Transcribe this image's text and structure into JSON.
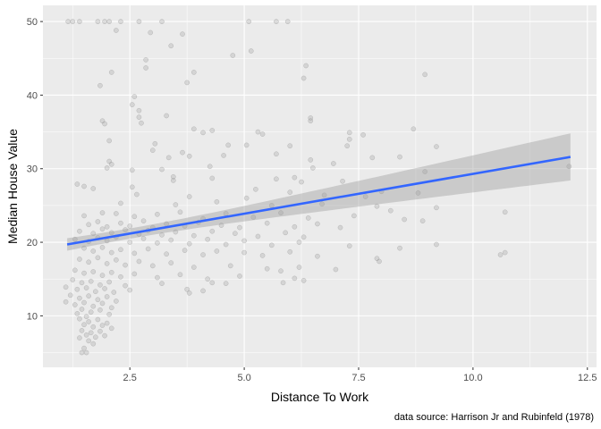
{
  "chart_data": {
    "type": "scatter",
    "title": "",
    "xlabel": "Distance To Work",
    "ylabel": "Median House Value",
    "caption": "data source: Harrison Jr and Rubinfeld (1978)",
    "xlim": [
      0.6,
      12.7
    ],
    "ylim": [
      3.0,
      52.2
    ],
    "x_ticks": [
      2.5,
      5.0,
      7.5,
      10.0,
      12.5
    ],
    "x_tick_labels": [
      "2.5",
      "5.0",
      "7.5",
      "10.0",
      "12.5"
    ],
    "y_ticks": [
      10,
      20,
      30,
      40,
      50
    ],
    "y_tick_labels": [
      "10",
      "20",
      "30",
      "40",
      "50"
    ],
    "grid": true,
    "legend": "none",
    "colors": {
      "panel": "#ebebeb",
      "grid": "#ffffff",
      "points": "#999999",
      "trend": "#3366ff",
      "ribbon": "#999999"
    },
    "trend": {
      "method": "linear",
      "x": [
        1.13,
        12.13
      ],
      "y": [
        19.7,
        31.6
      ],
      "ci_halfwidth": [
        0.7,
        3.2
      ]
    },
    "points": [
      {
        "x": 1.15,
        "y": 50
      },
      {
        "x": 1.25,
        "y": 50
      },
      {
        "x": 1.4,
        "y": 50
      },
      {
        "x": 1.8,
        "y": 50
      },
      {
        "x": 1.95,
        "y": 50
      },
      {
        "x": 2.05,
        "y": 50
      },
      {
        "x": 2.3,
        "y": 50
      },
      {
        "x": 2.7,
        "y": 50
      },
      {
        "x": 3.2,
        "y": 50
      },
      {
        "x": 5.1,
        "y": 50
      },
      {
        "x": 5.7,
        "y": 50
      },
      {
        "x": 5.95,
        "y": 50
      },
      {
        "x": 2.2,
        "y": 48.8
      },
      {
        "x": 2.95,
        "y": 48.5
      },
      {
        "x": 3.65,
        "y": 48.3
      },
      {
        "x": 5.15,
        "y": 46.0
      },
      {
        "x": 3.4,
        "y": 46.7
      },
      {
        "x": 4.75,
        "y": 45.4
      },
      {
        "x": 2.85,
        "y": 44.8
      },
      {
        "x": 6.35,
        "y": 44.0
      },
      {
        "x": 2.85,
        "y": 43.7
      },
      {
        "x": 3.9,
        "y": 43.1
      },
      {
        "x": 2.1,
        "y": 43.1
      },
      {
        "x": 6.3,
        "y": 42.3
      },
      {
        "x": 8.95,
        "y": 42.8
      },
      {
        "x": 1.85,
        "y": 41.3
      },
      {
        "x": 3.75,
        "y": 41.7
      },
      {
        "x": 2.6,
        "y": 39.8
      },
      {
        "x": 2.55,
        "y": 38.7
      },
      {
        "x": 2.7,
        "y": 37.9
      },
      {
        "x": 3.3,
        "y": 37.2
      },
      {
        "x": 2.7,
        "y": 37.0
      },
      {
        "x": 1.9,
        "y": 36.5
      },
      {
        "x": 6.45,
        "y": 36.9
      },
      {
        "x": 6.45,
        "y": 36.5
      },
      {
        "x": 1.95,
        "y": 36.1
      },
      {
        "x": 2.75,
        "y": 36.2
      },
      {
        "x": 3.9,
        "y": 35.4
      },
      {
        "x": 4.3,
        "y": 35.2
      },
      {
        "x": 5.3,
        "y": 35.0
      },
      {
        "x": 7.3,
        "y": 34.9
      },
      {
        "x": 7.6,
        "y": 34.6
      },
      {
        "x": 8.7,
        "y": 35.4
      },
      {
        "x": 7.3,
        "y": 34.0
      },
      {
        "x": 4.1,
        "y": 34.9
      },
      {
        "x": 5.4,
        "y": 34.7
      },
      {
        "x": 2.05,
        "y": 33.8
      },
      {
        "x": 3.05,
        "y": 33.4
      },
      {
        "x": 4.65,
        "y": 33.2
      },
      {
        "x": 5.05,
        "y": 33.2
      },
      {
        "x": 6.0,
        "y": 33.1
      },
      {
        "x": 7.25,
        "y": 33.1
      },
      {
        "x": 9.2,
        "y": 33.0
      },
      {
        "x": 3.65,
        "y": 32.2
      },
      {
        "x": 3.0,
        "y": 32.5
      },
      {
        "x": 4.55,
        "y": 31.8
      },
      {
        "x": 5.7,
        "y": 32.0
      },
      {
        "x": 3.35,
        "y": 31.5
      },
      {
        "x": 3.8,
        "y": 31.7
      },
      {
        "x": 6.45,
        "y": 31.2
      },
      {
        "x": 7.8,
        "y": 31.5
      },
      {
        "x": 8.4,
        "y": 31.6
      },
      {
        "x": 2.05,
        "y": 31.0
      },
      {
        "x": 2.1,
        "y": 30.6
      },
      {
        "x": 2.0,
        "y": 30.1
      },
      {
        "x": 2.55,
        "y": 29.8
      },
      {
        "x": 3.2,
        "y": 29.9
      },
      {
        "x": 4.25,
        "y": 30.3
      },
      {
        "x": 6.5,
        "y": 30.1
      },
      {
        "x": 6.95,
        "y": 30.7
      },
      {
        "x": 8.95,
        "y": 29.6
      },
      {
        "x": 12.1,
        "y": 30.3
      },
      {
        "x": 3.45,
        "y": 28.9
      },
      {
        "x": 3.45,
        "y": 28.4
      },
      {
        "x": 4.3,
        "y": 28.7
      },
      {
        "x": 5.7,
        "y": 28.6
      },
      {
        "x": 6.1,
        "y": 28.8
      },
      {
        "x": 6.25,
        "y": 28.2
      },
      {
        "x": 7.15,
        "y": 28.3
      },
      {
        "x": 2.55,
        "y": 27.5
      },
      {
        "x": 1.35,
        "y": 27.9
      },
      {
        "x": 1.5,
        "y": 27.6
      },
      {
        "x": 1.7,
        "y": 27.3
      },
      {
        "x": 5.25,
        "y": 27.2
      },
      {
        "x": 6.0,
        "y": 26.8
      },
      {
        "x": 8.0,
        "y": 26.9
      },
      {
        "x": 8.8,
        "y": 26.7
      },
      {
        "x": 2.65,
        "y": 26.5
      },
      {
        "x": 3.8,
        "y": 26.2
      },
      {
        "x": 5.05,
        "y": 26.0
      },
      {
        "x": 6.75,
        "y": 26.4
      },
      {
        "x": 7.65,
        "y": 26.2
      },
      {
        "x": 2.3,
        "y": 25.3
      },
      {
        "x": 3.5,
        "y": 25.1
      },
      {
        "x": 4.4,
        "y": 25.5
      },
      {
        "x": 5.6,
        "y": 25.0
      },
      {
        "x": 6.7,
        "y": 25.2
      },
      {
        "x": 7.9,
        "y": 24.9
      },
      {
        "x": 9.2,
        "y": 24.7
      },
      {
        "x": 10.7,
        "y": 24.1
      },
      {
        "x": 8.2,
        "y": 24.3
      },
      {
        "x": 1.5,
        "y": 23.6
      },
      {
        "x": 1.9,
        "y": 24.0
      },
      {
        "x": 2.2,
        "y": 23.9
      },
      {
        "x": 2.6,
        "y": 23.5
      },
      {
        "x": 3.1,
        "y": 23.8
      },
      {
        "x": 3.6,
        "y": 24.1
      },
      {
        "x": 4.1,
        "y": 23.2
      },
      {
        "x": 4.6,
        "y": 23.9
      },
      {
        "x": 5.2,
        "y": 23.4
      },
      {
        "x": 5.8,
        "y": 24.0
      },
      {
        "x": 6.4,
        "y": 23.3
      },
      {
        "x": 7.4,
        "y": 23.6
      },
      {
        "x": 8.5,
        "y": 23.1
      },
      {
        "x": 8.9,
        "y": 22.9
      },
      {
        "x": 1.6,
        "y": 22.4
      },
      {
        "x": 1.8,
        "y": 22.8
      },
      {
        "x": 2.0,
        "y": 22.1
      },
      {
        "x": 2.3,
        "y": 22.6
      },
      {
        "x": 2.5,
        "y": 22.2
      },
      {
        "x": 2.8,
        "y": 22.9
      },
      {
        "x": 3.0,
        "y": 22.0
      },
      {
        "x": 3.3,
        "y": 22.5
      },
      {
        "x": 3.7,
        "y": 22.2
      },
      {
        "x": 4.0,
        "y": 22.7
      },
      {
        "x": 4.5,
        "y": 22.3
      },
      {
        "x": 4.9,
        "y": 22.0
      },
      {
        "x": 5.5,
        "y": 22.6
      },
      {
        "x": 6.1,
        "y": 22.1
      },
      {
        "x": 6.6,
        "y": 22.5
      },
      {
        "x": 7.1,
        "y": 22.0
      },
      {
        "x": 1.4,
        "y": 21.5
      },
      {
        "x": 1.7,
        "y": 21.2
      },
      {
        "x": 1.9,
        "y": 21.8
      },
      {
        "x": 2.1,
        "y": 21.3
      },
      {
        "x": 2.4,
        "y": 21.7
      },
      {
        "x": 2.7,
        "y": 21.1
      },
      {
        "x": 2.9,
        "y": 21.6
      },
      {
        "x": 3.2,
        "y": 21.0
      },
      {
        "x": 3.5,
        "y": 21.4
      },
      {
        "x": 3.9,
        "y": 20.9
      },
      {
        "x": 4.3,
        "y": 21.5
      },
      {
        "x": 4.8,
        "y": 21.2
      },
      {
        "x": 5.3,
        "y": 20.8
      },
      {
        "x": 5.9,
        "y": 21.3
      },
      {
        "x": 6.3,
        "y": 20.7
      },
      {
        "x": 1.3,
        "y": 20.4
      },
      {
        "x": 1.6,
        "y": 20.1
      },
      {
        "x": 1.8,
        "y": 20.6
      },
      {
        "x": 2.0,
        "y": 20.2
      },
      {
        "x": 2.2,
        "y": 20.7
      },
      {
        "x": 2.5,
        "y": 20.0
      },
      {
        "x": 2.8,
        "y": 20.5
      },
      {
        "x": 3.1,
        "y": 19.9
      },
      {
        "x": 3.4,
        "y": 20.3
      },
      {
        "x": 3.8,
        "y": 19.8
      },
      {
        "x": 4.2,
        "y": 20.4
      },
      {
        "x": 4.6,
        "y": 19.7
      },
      {
        "x": 5.0,
        "y": 20.2
      },
      {
        "x": 5.6,
        "y": 19.6
      },
      {
        "x": 6.2,
        "y": 20.0
      },
      {
        "x": 7.3,
        "y": 19.5
      },
      {
        "x": 8.4,
        "y": 19.2
      },
      {
        "x": 9.2,
        "y": 19.7
      },
      {
        "x": 1.5,
        "y": 19.2
      },
      {
        "x": 1.7,
        "y": 18.8
      },
      {
        "x": 1.9,
        "y": 19.3
      },
      {
        "x": 2.1,
        "y": 18.6
      },
      {
        "x": 2.3,
        "y": 19.0
      },
      {
        "x": 2.6,
        "y": 18.5
      },
      {
        "x": 2.9,
        "y": 19.1
      },
      {
        "x": 3.3,
        "y": 18.4
      },
      {
        "x": 3.7,
        "y": 18.9
      },
      {
        "x": 4.1,
        "y": 18.3
      },
      {
        "x": 4.4,
        "y": 18.8
      },
      {
        "x": 5.0,
        "y": 18.6
      },
      {
        "x": 5.4,
        "y": 18.2
      },
      {
        "x": 6.0,
        "y": 18.7
      },
      {
        "x": 6.6,
        "y": 18.1
      },
      {
        "x": 7.9,
        "y": 17.8
      },
      {
        "x": 10.6,
        "y": 18.3
      },
      {
        "x": 10.7,
        "y": 18.6
      },
      {
        "x": 7.95,
        "y": 17.4
      },
      {
        "x": 1.4,
        "y": 17.7
      },
      {
        "x": 1.6,
        "y": 17.3
      },
      {
        "x": 1.8,
        "y": 17.9
      },
      {
        "x": 2.0,
        "y": 17.1
      },
      {
        "x": 2.2,
        "y": 17.6
      },
      {
        "x": 2.4,
        "y": 16.9
      },
      {
        "x": 2.7,
        "y": 17.4
      },
      {
        "x": 3.0,
        "y": 16.8
      },
      {
        "x": 3.4,
        "y": 17.2
      },
      {
        "x": 3.9,
        "y": 16.6
      },
      {
        "x": 4.7,
        "y": 16.8
      },
      {
        "x": 5.5,
        "y": 16.4
      },
      {
        "x": 6.2,
        "y": 16.6
      },
      {
        "x": 7.0,
        "y": 16.3
      },
      {
        "x": 5.8,
        "y": 16.1
      },
      {
        "x": 1.3,
        "y": 16.2
      },
      {
        "x": 1.5,
        "y": 15.8
      },
      {
        "x": 1.7,
        "y": 16.0
      },
      {
        "x": 1.9,
        "y": 15.5
      },
      {
        "x": 2.1,
        "y": 15.9
      },
      {
        "x": 2.3,
        "y": 15.3
      },
      {
        "x": 2.6,
        "y": 15.7
      },
      {
        "x": 3.1,
        "y": 15.2
      },
      {
        "x": 3.6,
        "y": 15.6
      },
      {
        "x": 4.2,
        "y": 15.0
      },
      {
        "x": 4.9,
        "y": 15.4
      },
      {
        "x": 6.1,
        "y": 15.1
      },
      {
        "x": 6.3,
        "y": 14.8
      },
      {
        "x": 5.85,
        "y": 14.5
      },
      {
        "x": 1.25,
        "y": 14.9
      },
      {
        "x": 1.45,
        "y": 14.5
      },
      {
        "x": 1.65,
        "y": 14.7
      },
      {
        "x": 1.85,
        "y": 14.2
      },
      {
        "x": 2.05,
        "y": 14.6
      },
      {
        "x": 2.4,
        "y": 14.1
      },
      {
        "x": 3.2,
        "y": 14.4
      },
      {
        "x": 4.3,
        "y": 14.5
      },
      {
        "x": 4.6,
        "y": 14.4
      },
      {
        "x": 1.1,
        "y": 13.9
      },
      {
        "x": 1.35,
        "y": 13.6
      },
      {
        "x": 1.55,
        "y": 13.8
      },
      {
        "x": 1.75,
        "y": 13.3
      },
      {
        "x": 1.95,
        "y": 13.7
      },
      {
        "x": 2.15,
        "y": 13.2
      },
      {
        "x": 2.5,
        "y": 13.5
      },
      {
        "x": 3.75,
        "y": 13.6
      },
      {
        "x": 3.8,
        "y": 13.1
      },
      {
        "x": 4.1,
        "y": 13.4
      },
      {
        "x": 1.2,
        "y": 12.8
      },
      {
        "x": 1.4,
        "y": 12.4
      },
      {
        "x": 1.6,
        "y": 12.7
      },
      {
        "x": 1.8,
        "y": 12.2
      },
      {
        "x": 2.0,
        "y": 12.6
      },
      {
        "x": 2.2,
        "y": 12.0
      },
      {
        "x": 1.1,
        "y": 11.9
      },
      {
        "x": 1.3,
        "y": 11.5
      },
      {
        "x": 1.5,
        "y": 11.8
      },
      {
        "x": 1.7,
        "y": 11.3
      },
      {
        "x": 1.9,
        "y": 11.7
      },
      {
        "x": 2.1,
        "y": 11.1
      },
      {
        "x": 1.45,
        "y": 10.9
      },
      {
        "x": 1.65,
        "y": 10.5
      },
      {
        "x": 1.85,
        "y": 10.8
      },
      {
        "x": 2.05,
        "y": 10.2
      },
      {
        "x": 1.35,
        "y": 10.3
      },
      {
        "x": 1.55,
        "y": 9.9
      },
      {
        "x": 1.4,
        "y": 9.6
      },
      {
        "x": 1.6,
        "y": 9.2
      },
      {
        "x": 1.8,
        "y": 9.5
      },
      {
        "x": 2.0,
        "y": 9.0
      },
      {
        "x": 1.5,
        "y": 8.8
      },
      {
        "x": 1.7,
        "y": 8.5
      },
      {
        "x": 1.9,
        "y": 8.7
      },
      {
        "x": 2.1,
        "y": 8.3
      },
      {
        "x": 1.45,
        "y": 8.0
      },
      {
        "x": 1.65,
        "y": 7.7
      },
      {
        "x": 1.85,
        "y": 7.9
      },
      {
        "x": 1.55,
        "y": 7.4
      },
      {
        "x": 1.75,
        "y": 7.1
      },
      {
        "x": 1.95,
        "y": 7.3
      },
      {
        "x": 1.4,
        "y": 7.0
      },
      {
        "x": 1.6,
        "y": 6.6
      },
      {
        "x": 1.7,
        "y": 6.2
      },
      {
        "x": 1.5,
        "y": 5.6
      },
      {
        "x": 1.45,
        "y": 5.0
      },
      {
        "x": 1.55,
        "y": 5.0
      }
    ]
  }
}
